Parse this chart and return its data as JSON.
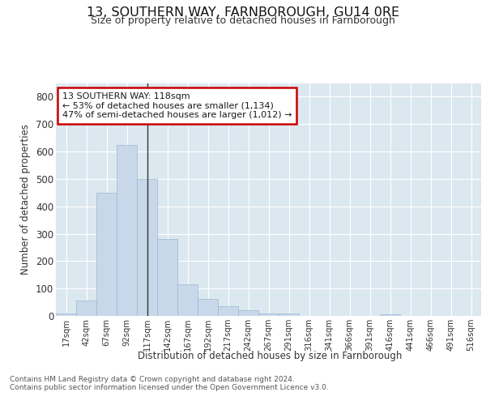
{
  "title": "13, SOUTHERN WAY, FARNBOROUGH, GU14 0RE",
  "subtitle": "Size of property relative to detached houses in Farnborough",
  "xlabel": "Distribution of detached houses by size in Farnborough",
  "ylabel": "Number of detached properties",
  "footnote1": "Contains HM Land Registry data © Crown copyright and database right 2024.",
  "footnote2": "Contains public sector information licensed under the Open Government Licence v3.0.",
  "annotation_line1": "13 SOUTHERN WAY: 118sqm",
  "annotation_line2": "← 53% of detached houses are smaller (1,134)",
  "annotation_line3": "47% of semi-detached houses are larger (1,012) →",
  "bar_color": "#c8d8ea",
  "bar_edge_color": "#9ab8d0",
  "marker_line_color": "#333333",
  "annotation_box_edge": "#cc0000",
  "figure_bg_color": "#ffffff",
  "plot_bg_color": "#dce8f0",
  "bins": [
    "17sqm",
    "42sqm",
    "67sqm",
    "92sqm",
    "117sqm",
    "142sqm",
    "167sqm",
    "192sqm",
    "217sqm",
    "242sqm",
    "267sqm",
    "291sqm",
    "316sqm",
    "341sqm",
    "366sqm",
    "391sqm",
    "416sqm",
    "441sqm",
    "466sqm",
    "491sqm",
    "516sqm"
  ],
  "counts": [
    10,
    55,
    450,
    625,
    500,
    280,
    115,
    63,
    35,
    22,
    8,
    8,
    0,
    0,
    0,
    0,
    5,
    0,
    0,
    0,
    0
  ],
  "marker_bin_index": 4,
  "ylim": [
    0,
    850
  ],
  "yticks": [
    0,
    100,
    200,
    300,
    400,
    500,
    600,
    700,
    800
  ]
}
